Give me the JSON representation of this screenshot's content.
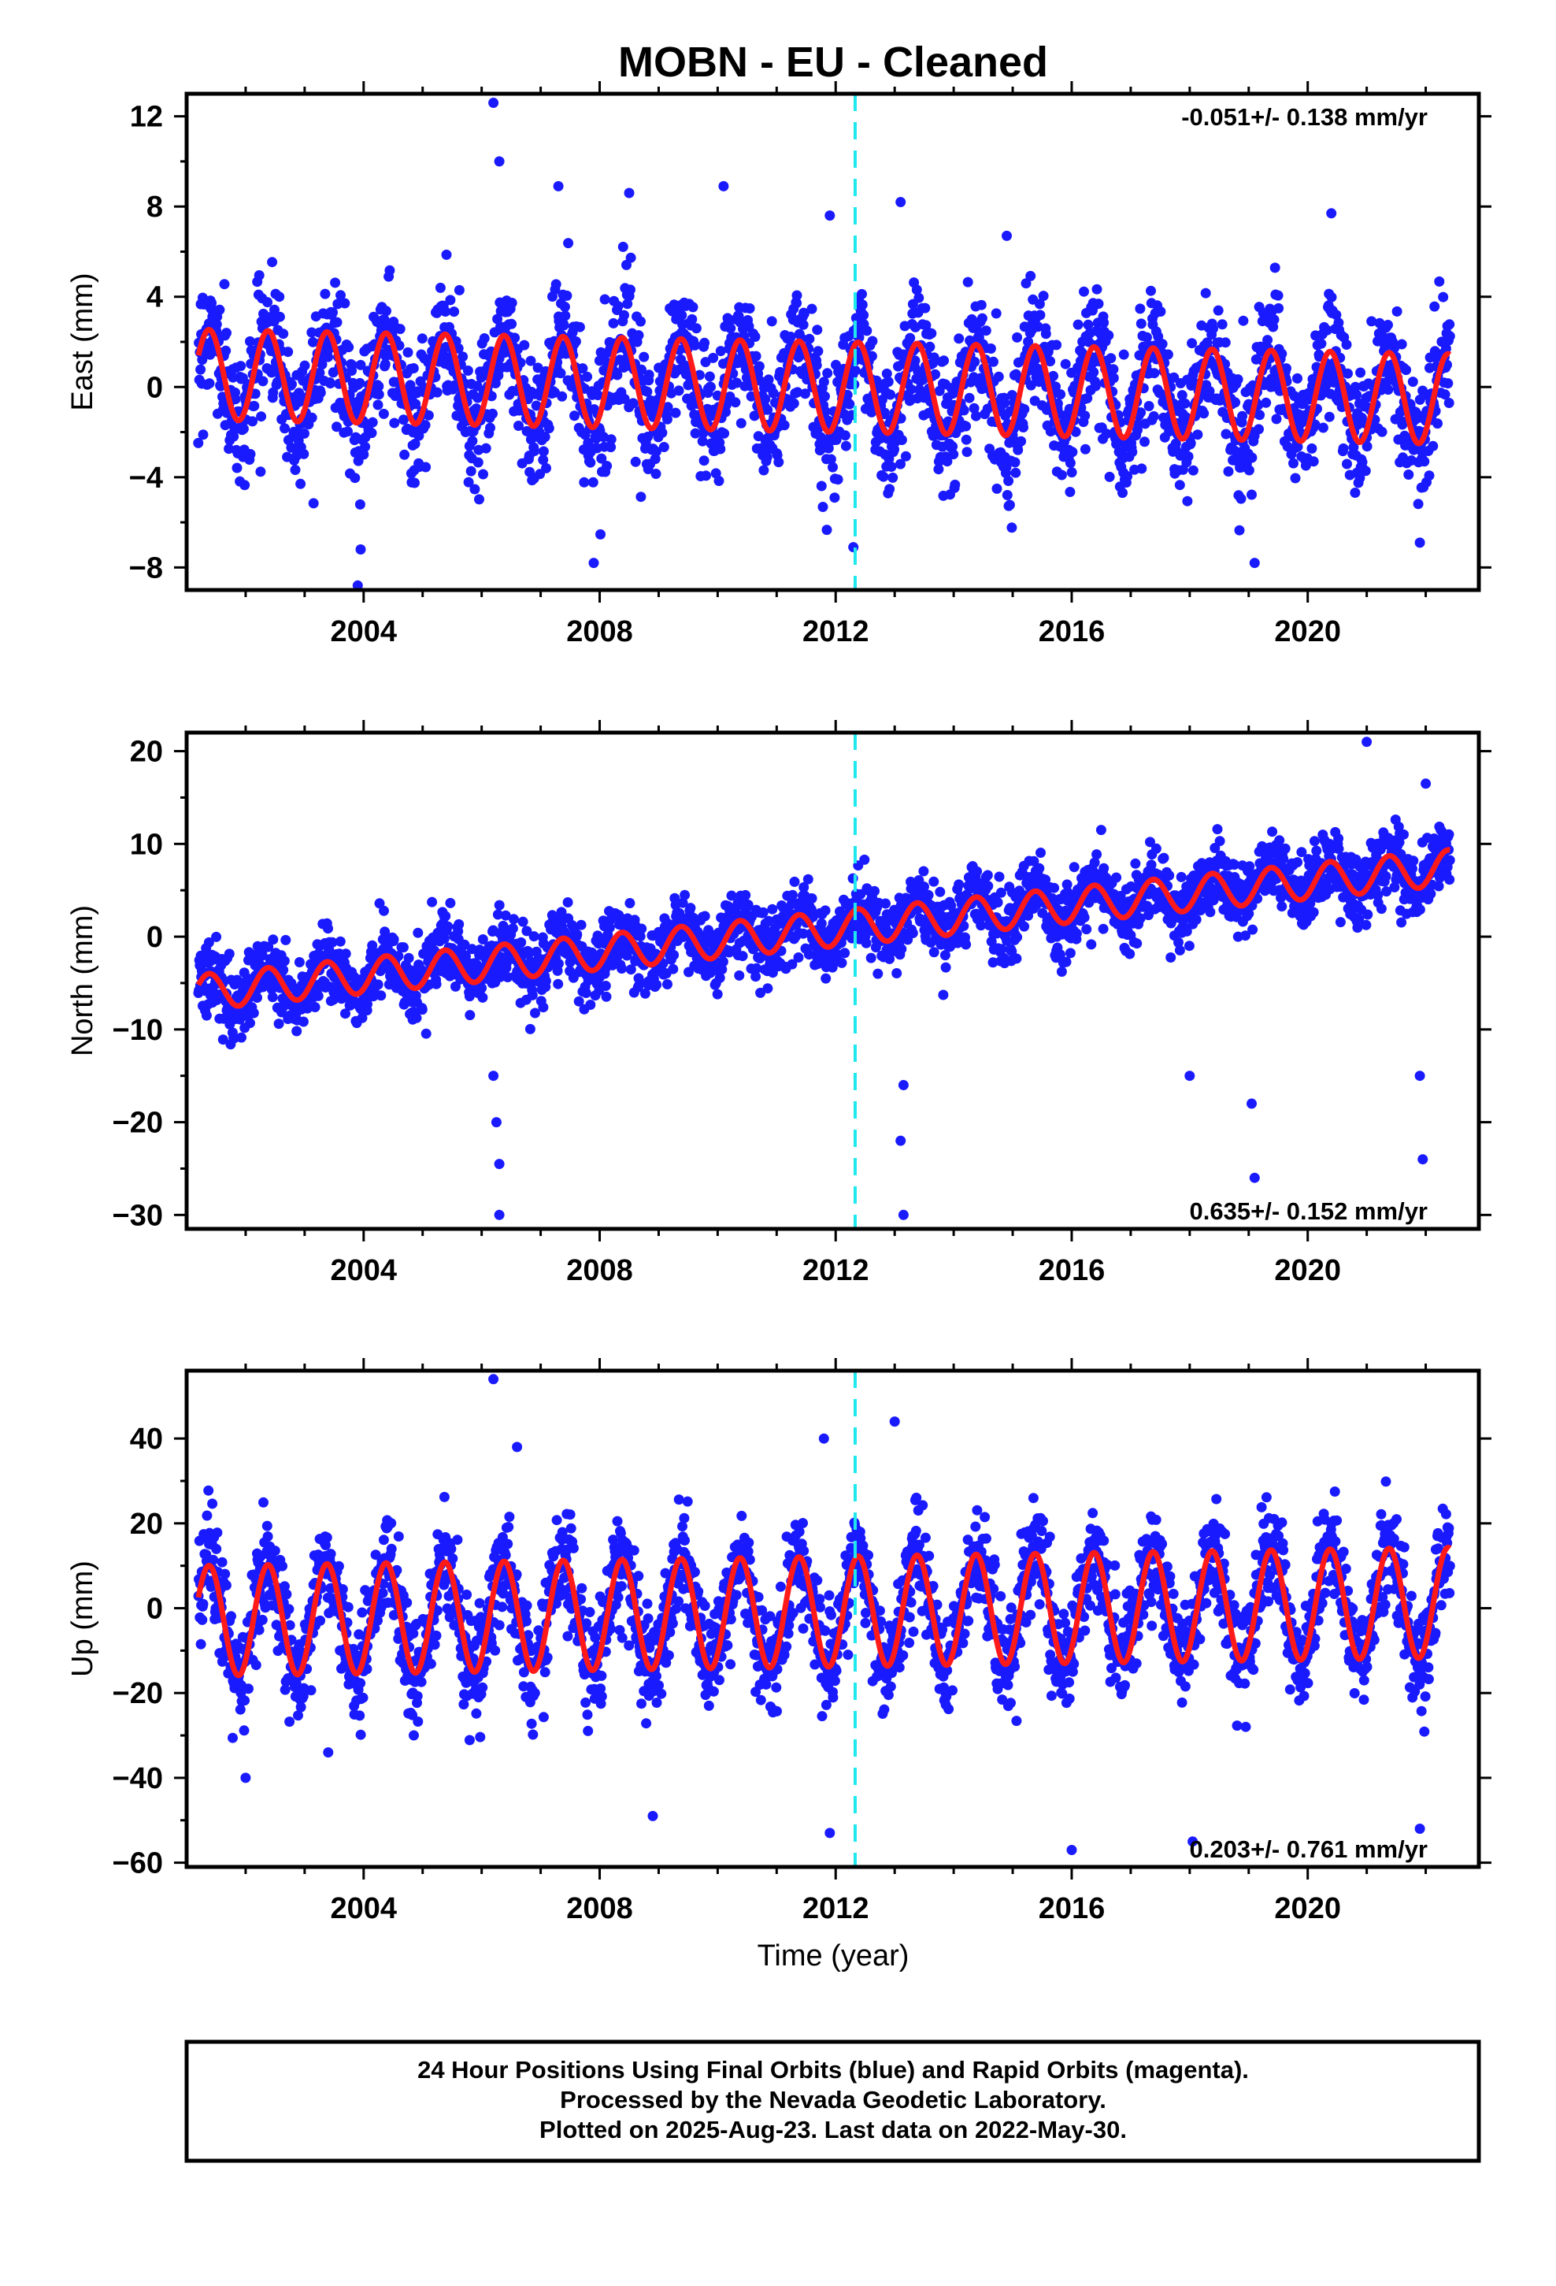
{
  "title": "MOBN  - EU - Cleaned",
  "xlabel": "Time (year)",
  "footer": [
    "24 Hour Positions Using Final Orbits (blue) and Rapid Orbits (magenta).",
    "Processed by the Nevada Geodetic Laboratory.",
    "Plotted on 2025-Aug-23. Last data on 2022-May-30."
  ],
  "colors": {
    "observations": "#1a1aff",
    "model": "#ff1a1a",
    "equipment_change": "#1ee8ee"
  },
  "chart_data": [
    {
      "type": "scatter",
      "panel": "east",
      "ylabel": "East (mm)",
      "rate_label": "-0.051+/- 0.138 mm/yr",
      "rate_position": "top-right",
      "xlim": [
        2001.0,
        2022.9
      ],
      "ylim": [
        -9.0,
        13.0
      ],
      "yticks": [
        -8,
        -4,
        0,
        4,
        8,
        12
      ],
      "xticks": [
        2004,
        2008,
        2012,
        2016,
        2020
      ],
      "data_start": 2001.2,
      "data_end": 2022.41,
      "equipment_change": 2012.33,
      "trend": {
        "value_at_start": 0.55,
        "rate_mm_per_yr": -0.051
      },
      "annual_amplitude": 2.0,
      "scatter_sd": 1.4,
      "outliers": [
        [
          2006.2,
          12.6
        ],
        [
          2006.3,
          10.0
        ],
        [
          2007.3,
          8.9
        ],
        [
          2008.5,
          8.6
        ],
        [
          2010.1,
          8.9
        ],
        [
          2011.9,
          7.6
        ],
        [
          2013.1,
          8.2
        ],
        [
          2014.9,
          6.7
        ],
        [
          2020.4,
          7.7
        ],
        [
          2003.95,
          -7.2
        ],
        [
          2003.9,
          -8.8
        ],
        [
          2007.9,
          -7.8
        ],
        [
          2019.1,
          -7.8
        ],
        [
          2021.9,
          -6.9
        ],
        [
          2012.3,
          -7.1
        ]
      ]
    },
    {
      "type": "scatter",
      "panel": "north",
      "ylabel": "North (mm)",
      "rate_label": "0.635+/- 0.152 mm/yr",
      "rate_position": "bottom-right",
      "xlim": [
        2001.0,
        2022.9
      ],
      "ylim": [
        -31.5,
        22.0
      ],
      "yticks": [
        -30,
        -20,
        -10,
        0,
        10,
        20
      ],
      "xticks": [
        2004,
        2008,
        2012,
        2016,
        2020
      ],
      "data_start": 2001.2,
      "data_end": 2022.41,
      "equipment_change": 2012.33,
      "trend": {
        "value_at_start": -6.0,
        "rate_mm_per_yr": 0.635
      },
      "annual_amplitude": 1.9,
      "scatter_sd": 1.9,
      "outliers": [
        [
          2006.2,
          -15.0
        ],
        [
          2006.25,
          -20.0
        ],
        [
          2006.3,
          -24.5
        ],
        [
          2006.3,
          -30.0
        ],
        [
          2013.15,
          -16.0
        ],
        [
          2013.1,
          -22.0
        ],
        [
          2013.15,
          -30.0
        ],
        [
          2018.0,
          -15.0
        ],
        [
          2019.1,
          -26.0
        ],
        [
          2019.05,
          -18.0
        ],
        [
          2021.95,
          -24.0
        ],
        [
          2021.9,
          -15.0
        ],
        [
          2021.0,
          21.0
        ],
        [
          2022.0,
          16.5
        ],
        [
          2016.5,
          11.5
        ]
      ]
    },
    {
      "type": "scatter",
      "panel": "up",
      "ylabel": "Up (mm)",
      "rate_label": "0.203+/- 0.761 mm/yr",
      "rate_position": "bottom-right",
      "xlim": [
        2001.0,
        2022.9
      ],
      "ylim": [
        -61.0,
        56.0
      ],
      "yticks": [
        -60,
        -40,
        -20,
        0,
        20,
        40
      ],
      "xticks": [
        2004,
        2008,
        2012,
        2016,
        2020
      ],
      "data_start": 2001.2,
      "data_end": 2022.41,
      "equipment_change": 2012.33,
      "trend": {
        "value_at_start": -3.0,
        "rate_mm_per_yr": 0.203
      },
      "annual_amplitude": 13.0,
      "scatter_sd": 6.0,
      "outliers": [
        [
          2006.2,
          54.0
        ],
        [
          2013.0,
          44.0
        ],
        [
          2011.8,
          40.0
        ],
        [
          2006.6,
          38.0
        ],
        [
          2016.0,
          -57.0
        ],
        [
          2018.05,
          -55.0
        ],
        [
          2008.9,
          -49.0
        ],
        [
          2011.9,
          -53.0
        ],
        [
          2021.9,
          -52.0
        ],
        [
          2003.4,
          -34.0
        ],
        [
          2002.0,
          -40.0
        ]
      ]
    }
  ]
}
